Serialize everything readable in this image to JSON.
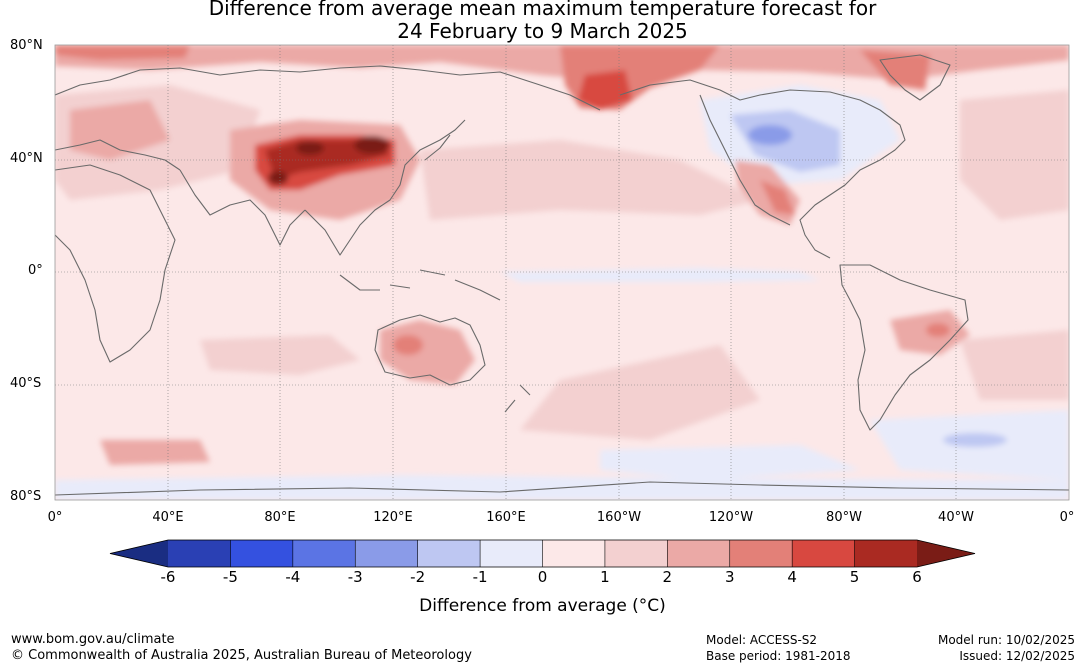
{
  "title": {
    "line1": "Difference from average mean maximum temperature forecast for",
    "line2": "24 February to 9 March 2025"
  },
  "map": {
    "lat_labels": [
      "80°N",
      "40°N",
      "0°",
      "40°S",
      "80°S"
    ],
    "lon_labels": [
      "0°",
      "40°E",
      "80°E",
      "120°E",
      "160°E",
      "160°W",
      "120°W",
      "80°W",
      "40°W",
      "0°"
    ],
    "anomaly_regions": [
      {
        "region": "Central/East Asia (Mongolia, China)",
        "value": "5 to 6+"
      },
      {
        "region": "Arctic / Eastern Siberia",
        "value": "3 to 5"
      },
      {
        "region": "Central Australia",
        "value": "2 to 4"
      },
      {
        "region": "Southwest United States / Mexico",
        "value": "2 to 4"
      },
      {
        "region": "Central Canada",
        "value": "-1 to -3"
      },
      {
        "region": "Southern Ocean",
        "value": "-1 to -2"
      }
    ]
  },
  "colorbar": {
    "ticks": [
      "-6",
      "-5",
      "-4",
      "-3",
      "-2",
      "-1",
      "0",
      "1",
      "2",
      "3",
      "4",
      "5",
      "6"
    ],
    "colors": [
      "#1a2d82",
      "#2a40b4",
      "#3451e0",
      "#5b74e4",
      "#8a9be8",
      "#bec7f2",
      "#e8ebfa",
      "#fce8e8",
      "#f3d0d0",
      "#eba9a6",
      "#e38078",
      "#d84840",
      "#aa2a22",
      "#7a1c16"
    ],
    "label": "Difference from average (°C)"
  },
  "footer": {
    "url": "www.bom.gov.au/climate",
    "copyright": "© Commonwealth of Australia 2025, Australian Bureau of Meteorology",
    "model": "Model: ACCESS-S2",
    "base_period": "Base period: 1981-2018",
    "model_run": "Model run: 10/02/2025",
    "issued": "Issued: 12/02/2025"
  }
}
